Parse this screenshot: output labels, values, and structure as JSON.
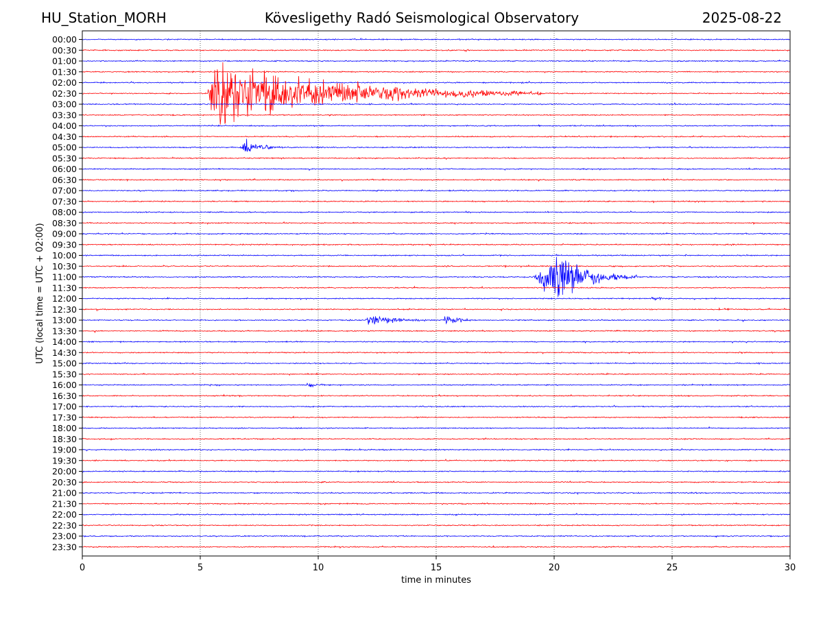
{
  "header": {
    "station": "HU_Station_MORH",
    "title": "Kövesligethy Radó Seismological Observatory",
    "date": "2025-08-22"
  },
  "chart_data": {
    "type": "line",
    "subtype": "helicorder",
    "xlabel": "time in minutes",
    "ylabel": "UTC (local time = UTC + 02:00)",
    "xlim": [
      0,
      30
    ],
    "xticks": [
      "0",
      "5",
      "10",
      "15",
      "20",
      "25",
      "30"
    ],
    "vertical_gridlines_at": [
      5,
      10,
      15,
      20,
      25
    ],
    "grid_style": "dotted",
    "row_labels": [
      "00:00",
      "00:30",
      "01:00",
      "01:30",
      "02:00",
      "02:30",
      "03:00",
      "03:30",
      "04:00",
      "04:30",
      "05:00",
      "05:30",
      "06:00",
      "06:30",
      "07:00",
      "07:30",
      "08:00",
      "08:30",
      "09:00",
      "09:30",
      "10:00",
      "10:30",
      "11:00",
      "11:30",
      "12:00",
      "12:30",
      "13:00",
      "13:30",
      "14:00",
      "14:30",
      "15:00",
      "15:30",
      "16:00",
      "16:30",
      "17:00",
      "17:30",
      "18:00",
      "18:30",
      "19:00",
      "19:30",
      "20:00",
      "20:30",
      "21:00",
      "21:30",
      "22:00",
      "22:30",
      "23:00",
      "23:30"
    ],
    "colors": [
      "#0000ff",
      "#ff0000"
    ],
    "events": [
      {
        "row": "02:30",
        "start_min": 5.3,
        "peak_min": 5.6,
        "end_min": 19.5,
        "amplitude": 78,
        "color": "#ff0000"
      },
      {
        "row": "05:00",
        "start_min": 6.7,
        "peak_min": 6.8,
        "end_min": 8.5,
        "amplitude": 22,
        "color": "#0000ff"
      },
      {
        "row": "11:00",
        "start_min": 19.1,
        "peak_min": 20.3,
        "end_min": 23.5,
        "amplitude": 62,
        "color": "#0000ff"
      },
      {
        "row": "12:00",
        "start_min": 24.0,
        "peak_min": 24.4,
        "end_min": 25.0,
        "amplitude": 4,
        "color": "#0000ff"
      },
      {
        "row": "13:00",
        "start_min": 12.0,
        "peak_min": 12.1,
        "end_min": 15.0,
        "amplitude": 14,
        "color": "#0000ff"
      },
      {
        "row": "13:00",
        "start_min": 15.3,
        "peak_min": 15.4,
        "end_min": 16.8,
        "amplitude": 13,
        "color": "#0000ff"
      },
      {
        "row": "16:00",
        "start_min": 9.5,
        "peak_min": 9.6,
        "end_min": 10.6,
        "amplitude": 7,
        "color": "#0000ff"
      }
    ]
  }
}
